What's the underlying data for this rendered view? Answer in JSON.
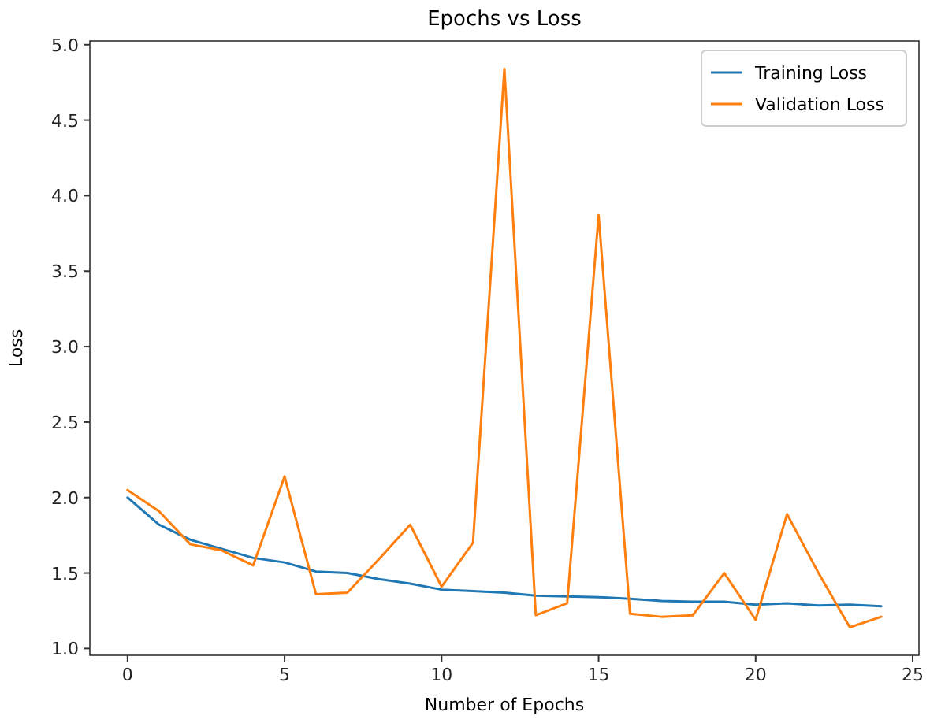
{
  "chart_data": {
    "type": "line",
    "title": "Epochs vs Loss",
    "xlabel": "Number of Epochs",
    "ylabel": "Loss",
    "x": [
      0,
      1,
      2,
      3,
      4,
      5,
      6,
      7,
      8,
      9,
      10,
      11,
      12,
      13,
      14,
      15,
      16,
      17,
      18,
      19,
      20,
      21,
      22,
      23,
      24
    ],
    "series": [
      {
        "name": "Training Loss",
        "color": "#1f77b4",
        "values": [
          2.0,
          1.82,
          1.72,
          1.66,
          1.6,
          1.57,
          1.51,
          1.5,
          1.46,
          1.43,
          1.39,
          1.38,
          1.37,
          1.35,
          1.345,
          1.34,
          1.33,
          1.315,
          1.31,
          1.31,
          1.29,
          1.3,
          1.285,
          1.29,
          1.28
        ]
      },
      {
        "name": "Validation Loss",
        "color": "#ff7f0e",
        "values": [
          2.05,
          1.91,
          1.69,
          1.65,
          1.55,
          2.14,
          1.36,
          1.37,
          1.59,
          1.82,
          1.41,
          1.7,
          4.84,
          1.22,
          1.3,
          3.87,
          1.23,
          1.21,
          1.22,
          1.5,
          1.19,
          1.89,
          1.5,
          1.14,
          1.21
        ]
      }
    ],
    "xlim": [
      -1.2,
      25.2
    ],
    "ylim": [
      0.955,
      5.025
    ],
    "xticks": [
      0,
      5,
      10,
      15,
      20,
      25
    ],
    "yticks": [
      {
        "value": 1,
        "label": "1.0"
      },
      {
        "value": 1.5,
        "label": "1.5"
      },
      {
        "value": 2,
        "label": "2.0"
      },
      {
        "value": 2.5,
        "label": "2.5"
      },
      {
        "value": 3,
        "label": "3.0"
      },
      {
        "value": 3.5,
        "label": "3.5"
      },
      {
        "value": 4,
        "label": "4.0"
      },
      {
        "value": 4.5,
        "label": "4.5"
      },
      {
        "value": 5,
        "label": "5.0"
      }
    ],
    "legend": "top right",
    "grid": false
  }
}
